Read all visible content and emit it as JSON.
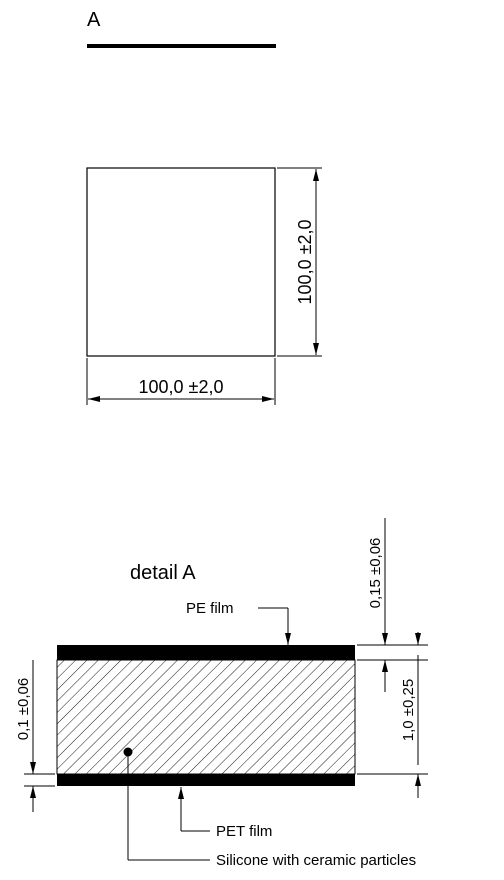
{
  "section_label": "A",
  "top_view": {
    "height_dimension": "100,0 ±2,0",
    "width_dimension": "100,0 ±2,0"
  },
  "detail": {
    "title": "detail A",
    "pe_film_label": "PE film",
    "pet_film_label": "PET film",
    "core_label": "Silicone with ceramic particles",
    "pe_thickness_dimension": "0,15 ±0,06",
    "total_thickness_dimension": "1,0 ±0,25",
    "pet_thickness_dimension": "0,1 ±0,06"
  }
}
